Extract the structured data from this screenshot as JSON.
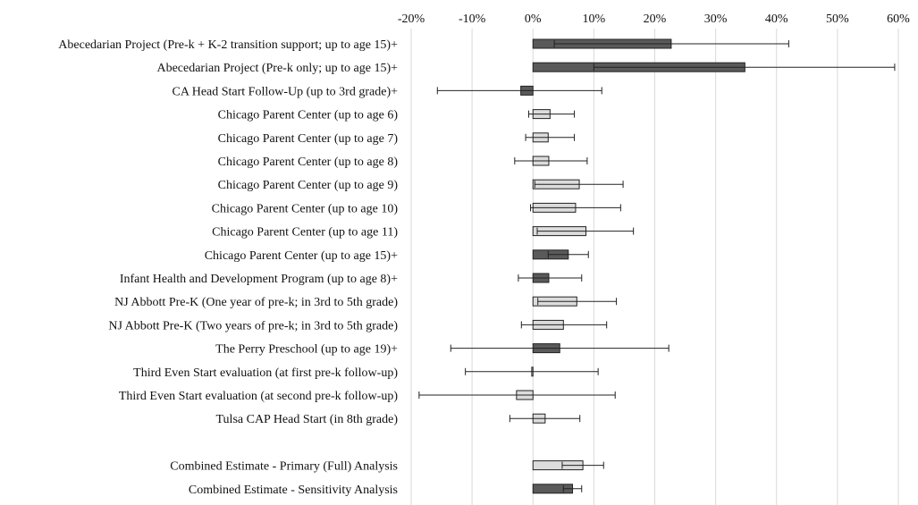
{
  "chart_data": {
    "type": "bar",
    "orientation": "horizontal",
    "title": "",
    "xlabel": "",
    "ylabel": "",
    "xlim": [
      -0.2,
      0.6
    ],
    "x_ticks": [
      -0.2,
      -0.1,
      0,
      0.1,
      0.2,
      0.3,
      0.4,
      0.5,
      0.6
    ],
    "x_tick_labels": [
      "-20%",
      "-10%",
      "0%",
      "10%",
      "20%",
      "30%",
      "40%",
      "50%",
      "60%"
    ],
    "tick_position": "top",
    "grid": true,
    "colors": {
      "dark": "#5a5a5a",
      "light": "#dcdcdc"
    },
    "rows": [
      {
        "label": "Abecedarian Project (Pre-k + K-2 transition support; up to age 15)+",
        "value": 0.227,
        "ci": [
          0.035,
          0.42
        ],
        "shade": "dark"
      },
      {
        "label": "Abecedarian Project (Pre-k only; up to age 15)+",
        "value": 0.348,
        "ci": [
          0.1,
          0.594
        ],
        "shade": "dark"
      },
      {
        "label": "CA Head Start Follow-Up (up to 3rd grade)+",
        "value": -0.02,
        "ci": [
          -0.157,
          0.113
        ],
        "shade": "dark"
      },
      {
        "label": "Chicago Parent Center (up to age 6)",
        "value": 0.028,
        "ci": [
          -0.007,
          0.068
        ],
        "shade": "light"
      },
      {
        "label": "Chicago Parent Center (up to age 7)",
        "value": 0.025,
        "ci": [
          -0.012,
          0.068
        ],
        "shade": "light"
      },
      {
        "label": "Chicago Parent Center (up to age 8)",
        "value": 0.026,
        "ci": [
          -0.03,
          0.089
        ],
        "shade": "light"
      },
      {
        "label": "Chicago Parent Center (up to age 9)",
        "value": 0.076,
        "ci": [
          0.003,
          0.148
        ],
        "shade": "light"
      },
      {
        "label": "Chicago Parent Center (up to age 10)",
        "value": 0.07,
        "ci": [
          -0.004,
          0.144
        ],
        "shade": "light"
      },
      {
        "label": "Chicago Parent Center (up to age 11)",
        "value": 0.087,
        "ci": [
          0.007,
          0.165
        ],
        "shade": "light"
      },
      {
        "label": "Chicago Parent Center (up to age 15)+",
        "value": 0.058,
        "ci": [
          0.025,
          0.091
        ],
        "shade": "dark"
      },
      {
        "label": "Infant Health and Development Program (up to age 8)+",
        "value": 0.026,
        "ci": [
          -0.024,
          0.08
        ],
        "shade": "dark"
      },
      {
        "label": "NJ Abbott Pre-K (One year of pre-k; in 3rd to 5th grade)",
        "value": 0.072,
        "ci": [
          0.008,
          0.137
        ],
        "shade": "light"
      },
      {
        "label": "NJ Abbott Pre-K (Two years of pre-k; in 3rd to 5th grade)",
        "value": 0.05,
        "ci": [
          -0.019,
          0.121
        ],
        "shade": "light"
      },
      {
        "label": "The Perry Preschool (up to age 19)+",
        "value": 0.044,
        "ci": [
          -0.135,
          0.223
        ],
        "shade": "dark"
      },
      {
        "label": "Third Even Start evaluation (at first pre-k follow-up)",
        "value": -0.002,
        "ci": [
          -0.111,
          0.107
        ],
        "shade": "light"
      },
      {
        "label": "Third Even Start evaluation (at second pre-k follow-up)",
        "value": -0.027,
        "ci": [
          -0.187,
          0.135
        ],
        "shade": "light"
      },
      {
        "label": "Tulsa CAP Head Start (in 8th grade)",
        "value": 0.02,
        "ci": [
          -0.038,
          0.077
        ],
        "shade": "light"
      },
      {
        "label": "",
        "value": null,
        "ci": null,
        "shade": "none"
      },
      {
        "label": "Combined Estimate - Primary (Full) Analysis",
        "value": 0.082,
        "ci": [
          0.048,
          0.116
        ],
        "shade": "light"
      },
      {
        "label": "Combined Estimate - Sensitivity Analysis",
        "value": 0.065,
        "ci": [
          0.05,
          0.08
        ],
        "shade": "dark"
      }
    ]
  }
}
